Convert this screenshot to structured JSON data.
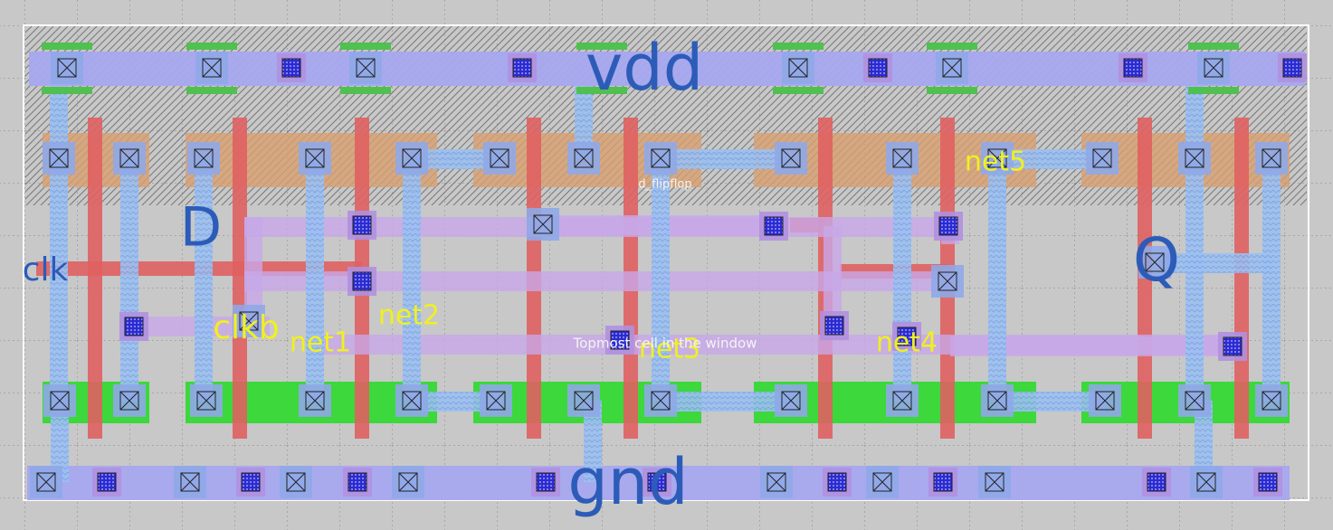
{
  "cell": {
    "name": "d_flipflop",
    "status": "Topmost cell in the window"
  },
  "labels": {
    "vdd": "vdd",
    "gnd": "gnd",
    "d": "D",
    "clk": "clk",
    "q": "Q",
    "clkb": "clkb",
    "net1": "net1",
    "net2": "net2",
    "net3": "net3",
    "net4": "net4",
    "net5": "net5"
  }
}
